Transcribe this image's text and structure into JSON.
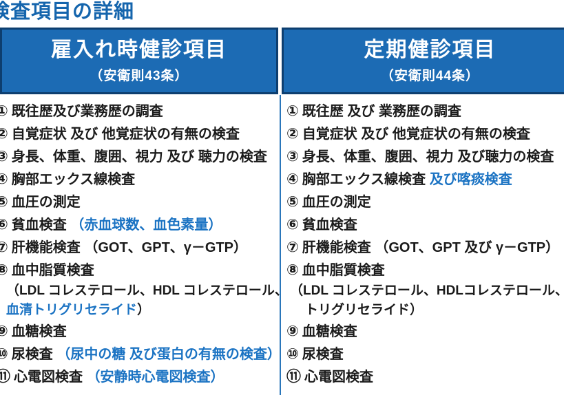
{
  "page": {
    "title": "検査項目の詳細"
  },
  "colors": {
    "title_blue": "#1565ad",
    "header_fill": "#1c6bb4",
    "header_border": "#0d3e6f",
    "accent_blue": "#1b73c3",
    "divider_blue": "#2a76ba",
    "text_black": "#1b1b1b"
  },
  "columns": [
    {
      "title": "雇入れ時健診項目",
      "subtitle": "（安衛則43条）",
      "items": [
        {
          "num": "①",
          "segments": [
            {
              "text": "既往歴及び業務歴の調査",
              "blue": false
            }
          ]
        },
        {
          "num": "②",
          "segments": [
            {
              "text": "自覚症状 及び 他覚症状の有無の検査",
              "blue": false
            }
          ]
        },
        {
          "num": "③",
          "segments": [
            {
              "text": "身長、体重、腹囲、視力 及び 聴力の検査",
              "blue": false
            }
          ]
        },
        {
          "num": "④",
          "segments": [
            {
              "text": "胸部エックス線検査",
              "blue": false
            }
          ]
        },
        {
          "num": "⑤",
          "segments": [
            {
              "text": "血圧の測定",
              "blue": false
            }
          ]
        },
        {
          "num": "⑥",
          "segments": [
            {
              "text": "貧血検査 ",
              "blue": false
            },
            {
              "text": "（赤血球数、血色素量）",
              "blue": true
            }
          ]
        },
        {
          "num": "⑦",
          "segments": [
            {
              "text": "肝機能検査 （GOT、GPT、γ－GTP）",
              "blue": false
            }
          ]
        },
        {
          "num": "⑧",
          "segments": [
            {
              "text": "血中脂質検査",
              "blue": false
            }
          ],
          "subs": [
            {
              "indent": false,
              "segments": [
                {
                  "text": "（LDL コレステロール、HDL コレステロール、",
                  "blue": false
                }
              ]
            },
            {
              "indent": false,
              "segments": [
                {
                  "text": "血清トリグリセライド",
                  "blue": true
                },
                {
                  "text": "）",
                  "blue": false
                }
              ]
            }
          ]
        },
        {
          "num": "⑨",
          "segments": [
            {
              "text": "血糖検査",
              "blue": false
            }
          ]
        },
        {
          "num": "⑩",
          "segments": [
            {
              "text": "尿検査 ",
              "blue": false
            },
            {
              "text": "（尿中の糖 及び蛋白の有無の検査）",
              "blue": true
            }
          ]
        },
        {
          "num": "⑪",
          "segments": [
            {
              "text": "心電図検査 ",
              "blue": false
            },
            {
              "text": "（安静時心電図検査）",
              "blue": true
            }
          ]
        }
      ]
    },
    {
      "title": "定期健診項目",
      "subtitle": "（安衛則44条）",
      "items": [
        {
          "num": "①",
          "segments": [
            {
              "text": "既往歴 及び 業務歴の調査",
              "blue": false
            }
          ]
        },
        {
          "num": "②",
          "segments": [
            {
              "text": "自覚症状 及び 他覚症状の有無の検査",
              "blue": false
            }
          ]
        },
        {
          "num": "③",
          "segments": [
            {
              "text": "身長、体重、腹囲、視力 及び聴力の検査",
              "blue": false
            }
          ]
        },
        {
          "num": "④",
          "segments": [
            {
              "text": "胸部エックス線検査 ",
              "blue": false
            },
            {
              "text": "及び喀痰検査",
              "blue": true
            }
          ]
        },
        {
          "num": "⑤",
          "segments": [
            {
              "text": "血圧の測定",
              "blue": false
            }
          ]
        },
        {
          "num": "⑥",
          "segments": [
            {
              "text": "貧血検査",
              "blue": false
            }
          ]
        },
        {
          "num": "⑦",
          "segments": [
            {
              "text": "肝機能検査 （GOT、GPT 及び γ－GTP）",
              "blue": false
            }
          ]
        },
        {
          "num": "⑧",
          "segments": [
            {
              "text": "血中脂質検査",
              "blue": false
            }
          ],
          "subs": [
            {
              "indent": false,
              "segments": [
                {
                  "text": "（LDL コレステロール、HDLコレステロール、",
                  "blue": false
                }
              ]
            },
            {
              "indent": true,
              "segments": [
                {
                  "text": "トリグリセライド）",
                  "blue": false
                }
              ]
            }
          ]
        },
        {
          "num": "⑨",
          "segments": [
            {
              "text": "血糖検査",
              "blue": false
            }
          ]
        },
        {
          "num": "⑩",
          "segments": [
            {
              "text": "尿検査",
              "blue": false
            }
          ]
        },
        {
          "num": "⑪",
          "segments": [
            {
              "text": "心電図検査",
              "blue": false
            }
          ]
        }
      ]
    }
  ]
}
